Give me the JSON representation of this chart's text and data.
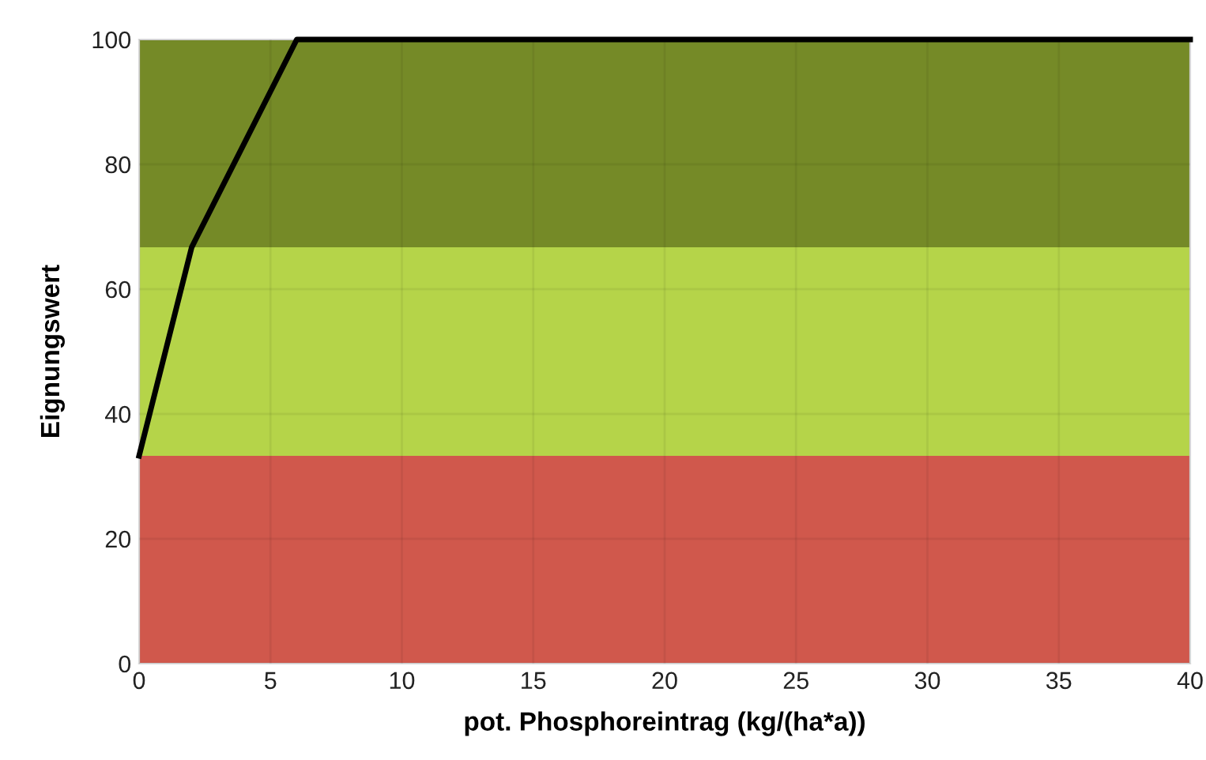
{
  "chart_data": {
    "type": "line",
    "xlabel": "pot. Phosphoreintrag (kg/(ha*a))",
    "ylabel": "Eignungswert",
    "x": [
      0,
      2,
      6,
      40
    ],
    "series": [
      {
        "color": "#000000",
        "values": [
          33.3,
          66.7,
          100,
          100
        ]
      }
    ],
    "bands": [
      {
        "axis": "y",
        "from": 0,
        "to": 33.3,
        "color": "#d0584c"
      },
      {
        "axis": "y",
        "from": 33.3,
        "to": 66.7,
        "color": "#b5d449"
      },
      {
        "axis": "y",
        "from": 66.7,
        "to": 100,
        "color": "#758a27"
      }
    ],
    "xlim": [
      0,
      40
    ],
    "xticks": [
      0,
      5,
      10,
      15,
      20,
      25,
      30,
      35,
      40
    ],
    "ylim": [
      0,
      100
    ],
    "yticks": [
      0,
      20,
      40,
      60,
      80,
      100
    ],
    "grid": true,
    "legend": false,
    "marker": "none",
    "line_style": "solid"
  }
}
